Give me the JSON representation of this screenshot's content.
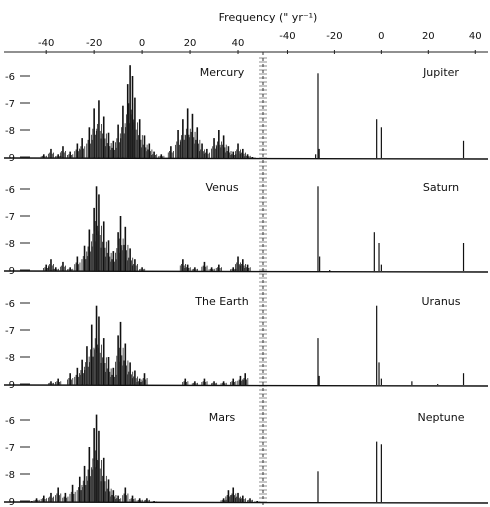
{
  "chart_data": {
    "type": "line",
    "title": "Frequency (\" yr⁻¹)",
    "x_ticks_left": [
      "-40",
      "-20",
      "0",
      "20",
      "40"
    ],
    "x_ticks_right": [
      "-40",
      "-20",
      "0",
      "20",
      "40"
    ],
    "xlim_left": [
      -48,
      50
    ],
    "xlim_right": [
      -50,
      45
    ],
    "y_ticks": [
      "-6",
      "-7",
      "-8",
      "-9"
    ],
    "ylim": [
      -9.5,
      -5.3
    ],
    "grid": false,
    "series": [
      {
        "name": "Mercury",
        "column": "left",
        "row": 0,
        "peaks": [
          [
            -41,
            -8.9
          ],
          [
            -38,
            -8.7
          ],
          [
            -35,
            -8.9
          ],
          [
            -33,
            -8.6
          ],
          [
            -30,
            -8.8
          ],
          [
            -27,
            -8.5
          ],
          [
            -25,
            -8.3
          ],
          [
            -22,
            -7.9
          ],
          [
            -20,
            -7.2
          ],
          [
            -18,
            -6.9
          ],
          [
            -16,
            -7.5
          ],
          [
            -14,
            -8.1
          ],
          [
            -12,
            -8.4
          ],
          [
            -10,
            -7.8
          ],
          [
            -8,
            -7.1
          ],
          [
            -6,
            -6.3
          ],
          [
            -5,
            -5.6
          ],
          [
            -4,
            -6.0
          ],
          [
            -3,
            -6.8
          ],
          [
            -1,
            -7.6
          ],
          [
            1,
            -8.2
          ],
          [
            3,
            -8.5
          ],
          [
            5,
            -8.8
          ],
          [
            8,
            -8.9
          ],
          [
            12,
            -8.6
          ],
          [
            15,
            -8.0
          ],
          [
            17,
            -7.6
          ],
          [
            19,
            -7.2
          ],
          [
            21,
            -7.4
          ],
          [
            23,
            -7.9
          ],
          [
            25,
            -8.5
          ],
          [
            27,
            -8.7
          ],
          [
            30,
            -8.3
          ],
          [
            32,
            -8.0
          ],
          [
            34,
            -8.2
          ],
          [
            36,
            -8.6
          ],
          [
            38,
            -8.8
          ],
          [
            40,
            -8.5
          ],
          [
            42,
            -8.7
          ],
          [
            44,
            -8.9
          ],
          [
            46,
            -9.0
          ]
        ]
      },
      {
        "name": "Venus",
        "column": "left",
        "row": 1,
        "peaks": [
          [
            -40,
            -8.8
          ],
          [
            -38,
            -8.6
          ],
          [
            -36,
            -8.9
          ],
          [
            -33,
            -8.7
          ],
          [
            -30,
            -8.9
          ],
          [
            -27,
            -8.5
          ],
          [
            -24,
            -8.1
          ],
          [
            -22,
            -7.5
          ],
          [
            -20,
            -6.7
          ],
          [
            -19,
            -5.9
          ],
          [
            -18,
            -6.2
          ],
          [
            -16,
            -7.2
          ],
          [
            -14,
            -7.9
          ],
          [
            -12,
            -8.3
          ],
          [
            -10,
            -7.6
          ],
          [
            -9,
            -7.0
          ],
          [
            -7,
            -7.4
          ],
          [
            -5,
            -8.2
          ],
          [
            -3,
            -8.6
          ],
          [
            0,
            -8.9
          ],
          [
            17,
            -8.6
          ],
          [
            19,
            -8.8
          ],
          [
            22,
            -8.9
          ],
          [
            26,
            -8.7
          ],
          [
            29,
            -8.9
          ],
          [
            32,
            -8.8
          ],
          [
            38,
            -8.9
          ],
          [
            40,
            -8.5
          ],
          [
            42,
            -8.6
          ],
          [
            44,
            -8.8
          ]
        ]
      },
      {
        "name": "The Earth",
        "column": "left",
        "row": 2,
        "peaks": [
          [
            -38,
            -8.9
          ],
          [
            -35,
            -8.8
          ],
          [
            -30,
            -8.6
          ],
          [
            -27,
            -8.4
          ],
          [
            -25,
            -8.1
          ],
          [
            -23,
            -7.6
          ],
          [
            -21,
            -6.8
          ],
          [
            -19,
            -6.1
          ],
          [
            -18,
            -6.5
          ],
          [
            -16,
            -7.3
          ],
          [
            -14,
            -8.0
          ],
          [
            -12,
            -8.4
          ],
          [
            -10,
            -7.2
          ],
          [
            -9,
            -6.7
          ],
          [
            -7,
            -7.5
          ],
          [
            -5,
            -8.2
          ],
          [
            -3,
            -8.5
          ],
          [
            -1,
            -8.8
          ],
          [
            1,
            -8.6
          ],
          [
            18,
            -8.8
          ],
          [
            22,
            -8.9
          ],
          [
            26,
            -8.8
          ],
          [
            30,
            -8.9
          ],
          [
            34,
            -8.9
          ],
          [
            38,
            -8.8
          ],
          [
            41,
            -8.7
          ],
          [
            43,
            -8.6
          ]
        ]
      },
      {
        "name": "Mars",
        "column": "left",
        "row": 3,
        "peaks": [
          [
            -46,
            -9.0
          ],
          [
            -44,
            -8.9
          ],
          [
            -41,
            -8.8
          ],
          [
            -38,
            -8.7
          ],
          [
            -35,
            -8.5
          ],
          [
            -32,
            -8.7
          ],
          [
            -29,
            -8.4
          ],
          [
            -26,
            -8.1
          ],
          [
            -24,
            -7.7
          ],
          [
            -22,
            -7.0
          ],
          [
            -20,
            -6.3
          ],
          [
            -19,
            -5.8
          ],
          [
            -18,
            -6.4
          ],
          [
            -16,
            -7.4
          ],
          [
            -14,
            -8.2
          ],
          [
            -12,
            -8.6
          ],
          [
            -10,
            -8.8
          ],
          [
            -7,
            -8.5
          ],
          [
            -4,
            -8.8
          ],
          [
            -1,
            -8.9
          ],
          [
            2,
            -8.9
          ],
          [
            5,
            -9.0
          ],
          [
            34,
            -8.9
          ],
          [
            36,
            -8.6
          ],
          [
            38,
            -8.5
          ],
          [
            40,
            -8.7
          ],
          [
            42,
            -8.8
          ],
          [
            45,
            -8.9
          ],
          [
            48,
            -9.0
          ]
        ]
      },
      {
        "name": "Jupiter",
        "column": "right",
        "row": 0,
        "peaks": [
          [
            -27,
            -5.9
          ],
          [
            -26.5,
            -8.7
          ],
          [
            -28,
            -8.9
          ],
          [
            -2,
            -7.6
          ],
          [
            0,
            -7.9
          ],
          [
            35,
            -8.4
          ]
        ]
      },
      {
        "name": "Saturn",
        "column": "right",
        "row": 1,
        "peaks": [
          [
            -27,
            -5.9
          ],
          [
            -26.3,
            -8.5
          ],
          [
            -22,
            -9.0
          ],
          [
            -3,
            -7.6
          ],
          [
            -1,
            -8.0
          ],
          [
            0,
            -8.8
          ],
          [
            35,
            -8.0
          ]
        ]
      },
      {
        "name": "Uranus",
        "column": "right",
        "row": 2,
        "peaks": [
          [
            -27,
            -7.3
          ],
          [
            -26.5,
            -8.7
          ],
          [
            -2,
            -6.1
          ],
          [
            -1,
            -8.2
          ],
          [
            0,
            -8.8
          ],
          [
            13,
            -8.9
          ],
          [
            24,
            -9.0
          ],
          [
            35,
            -8.6
          ]
        ]
      },
      {
        "name": "Neptune",
        "column": "right",
        "row": 3,
        "peaks": [
          [
            -27,
            -7.9
          ],
          [
            -2,
            -6.8
          ],
          [
            0,
            -6.9
          ]
        ]
      }
    ]
  }
}
